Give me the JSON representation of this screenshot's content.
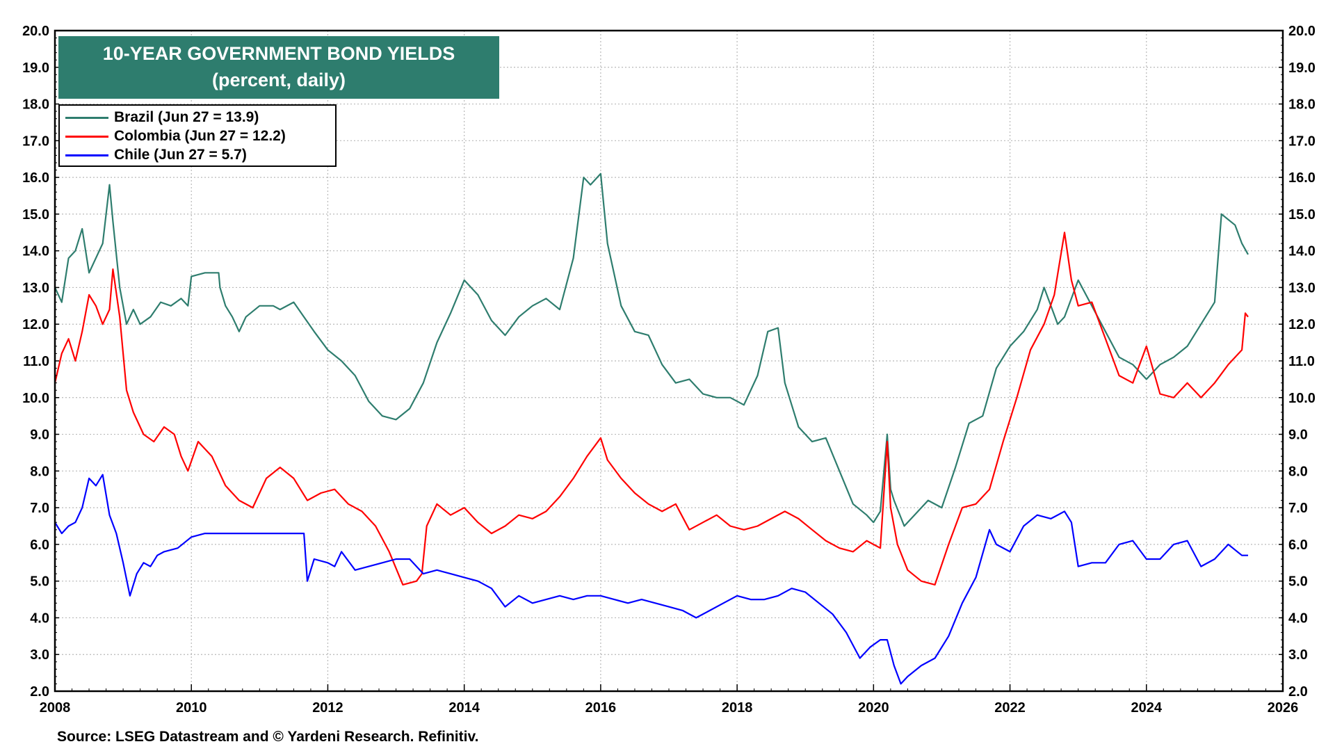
{
  "source_text": "Source: LSEG Datastream and © Yardeni Research. Refinitiv.",
  "chart_data": {
    "type": "line",
    "title": "10-YEAR GOVERNMENT BOND YIELDS",
    "subtitle": "(percent, daily)",
    "title_bg_color": "#2e7d6e",
    "xlim": [
      2008,
      2026
    ],
    "ylim": [
      2.0,
      20.0
    ],
    "x_ticks": [
      "2008",
      "2010",
      "2012",
      "2014",
      "2016",
      "2018",
      "2020",
      "2022",
      "2024",
      "2026"
    ],
    "y_ticks": [
      "2.0",
      "3.0",
      "4.0",
      "5.0",
      "6.0",
      "7.0",
      "8.0",
      "9.0",
      "10.0",
      "11.0",
      "12.0",
      "13.0",
      "14.0",
      "15.0",
      "16.0",
      "17.0",
      "18.0",
      "19.0",
      "20.0"
    ],
    "grid": true,
    "legend_position": "top-left",
    "series": [
      {
        "name": "Brazil (Jun 27 = 13.9)",
        "color": "#2e7d6e",
        "x": [
          2008.0,
          2008.1,
          2008.2,
          2008.3,
          2008.4,
          2008.5,
          2008.6,
          2008.7,
          2008.8,
          2008.85,
          2008.95,
          2009.05,
          2009.15,
          2009.25,
          2009.4,
          2009.55,
          2009.7,
          2009.85,
          2009.95,
          2010.0,
          2010.2,
          2010.4,
          2010.42,
          2010.5,
          2010.6,
          2010.7,
          2010.8,
          2011.0,
          2011.2,
          2011.3,
          2011.5,
          2011.65,
          2011.8,
          2012.0,
          2012.2,
          2012.4,
          2012.6,
          2012.8,
          2013.0,
          2013.2,
          2013.4,
          2013.6,
          2013.8,
          2014.0,
          2014.2,
          2014.4,
          2014.6,
          2014.8,
          2015.0,
          2015.2,
          2015.4,
          2015.6,
          2015.75,
          2015.85,
          2016.0,
          2016.1,
          2016.3,
          2016.5,
          2016.7,
          2016.9,
          2017.1,
          2017.3,
          2017.5,
          2017.7,
          2017.9,
          2018.1,
          2018.3,
          2018.45,
          2018.6,
          2018.7,
          2018.9,
          2019.1,
          2019.3,
          2019.5,
          2019.7,
          2019.9,
          2020.0,
          2020.1,
          2020.2,
          2020.25,
          2020.3,
          2020.45,
          2020.6,
          2020.8,
          2021.0,
          2021.2,
          2021.4,
          2021.6,
          2021.8,
          2022.0,
          2022.2,
          2022.4,
          2022.5,
          2022.7,
          2022.8,
          2023.0,
          2023.2,
          2023.4,
          2023.6,
          2023.8,
          2024.0,
          2024.2,
          2024.4,
          2024.6,
          2024.8,
          2025.0,
          2025.1,
          2025.3,
          2025.4,
          2025.49
        ],
        "y": [
          13.0,
          12.6,
          13.8,
          14.0,
          14.6,
          13.4,
          13.8,
          14.2,
          15.8,
          14.8,
          13.0,
          12.0,
          12.4,
          12.0,
          12.2,
          12.6,
          12.5,
          12.7,
          12.5,
          13.3,
          13.4,
          13.4,
          13.0,
          12.5,
          12.2,
          11.8,
          12.2,
          12.5,
          12.5,
          12.4,
          12.6,
          12.2,
          11.8,
          11.3,
          11.0,
          10.6,
          9.9,
          9.5,
          9.4,
          9.7,
          10.4,
          11.5,
          12.3,
          13.2,
          12.8,
          12.1,
          11.7,
          12.2,
          12.5,
          12.7,
          12.4,
          13.8,
          16.0,
          15.8,
          16.1,
          14.2,
          12.5,
          11.8,
          11.7,
          10.9,
          10.4,
          10.5,
          10.1,
          10.0,
          10.0,
          9.8,
          10.6,
          11.8,
          11.9,
          10.4,
          9.2,
          8.8,
          8.9,
          8.0,
          7.1,
          6.8,
          6.6,
          6.9,
          9.0,
          7.5,
          7.2,
          6.5,
          6.8,
          7.2,
          7.0,
          8.1,
          9.3,
          9.5,
          10.8,
          11.4,
          11.8,
          12.4,
          13.0,
          12.0,
          12.2,
          13.2,
          12.5,
          11.8,
          11.1,
          10.9,
          10.5,
          10.9,
          11.1,
          11.4,
          12.0,
          12.6,
          15.0,
          14.7,
          14.2,
          13.9
        ]
      },
      {
        "name": "Colombia (Jun 27 = 12.2)",
        "color": "#ff0000",
        "x": [
          2008.0,
          2008.1,
          2008.2,
          2008.3,
          2008.4,
          2008.5,
          2008.6,
          2008.7,
          2008.8,
          2008.85,
          2008.95,
          2009.05,
          2009.15,
          2009.3,
          2009.45,
          2009.6,
          2009.75,
          2009.85,
          2009.95,
          2010.1,
          2010.3,
          2010.5,
          2010.7,
          2010.9,
          2011.1,
          2011.3,
          2011.5,
          2011.7,
          2011.9,
          2012.1,
          2012.3,
          2012.5,
          2012.7,
          2012.9,
          2013.1,
          2013.3,
          2013.38,
          2013.45,
          2013.6,
          2013.8,
          2014.0,
          2014.2,
          2014.4,
          2014.6,
          2014.8,
          2015.0,
          2015.2,
          2015.4,
          2015.6,
          2015.8,
          2016.0,
          2016.1,
          2016.3,
          2016.5,
          2016.7,
          2016.9,
          2017.1,
          2017.3,
          2017.5,
          2017.7,
          2017.9,
          2018.1,
          2018.3,
          2018.5,
          2018.7,
          2018.9,
          2019.1,
          2019.3,
          2019.5,
          2019.7,
          2019.9,
          2020.1,
          2020.2,
          2020.25,
          2020.35,
          2020.5,
          2020.7,
          2020.9,
          2021.1,
          2021.3,
          2021.5,
          2021.7,
          2021.9,
          2022.1,
          2022.3,
          2022.5,
          2022.65,
          2022.8,
          2022.9,
          2023.0,
          2023.2,
          2023.4,
          2023.6,
          2023.8,
          2024.0,
          2024.2,
          2024.4,
          2024.6,
          2024.8,
          2025.0,
          2025.2,
          2025.4,
          2025.45,
          2025.49
        ],
        "y": [
          10.4,
          11.2,
          11.6,
          11.0,
          11.8,
          12.8,
          12.5,
          12.0,
          12.4,
          13.5,
          12.2,
          10.2,
          9.6,
          9.0,
          8.8,
          9.2,
          9.0,
          8.4,
          8.0,
          8.8,
          8.4,
          7.6,
          7.2,
          7.0,
          7.8,
          8.1,
          7.8,
          7.2,
          7.4,
          7.5,
          7.1,
          6.9,
          6.5,
          5.8,
          4.9,
          5.0,
          5.2,
          6.5,
          7.1,
          6.8,
          7.0,
          6.6,
          6.3,
          6.5,
          6.8,
          6.7,
          6.9,
          7.3,
          7.8,
          8.4,
          8.9,
          8.3,
          7.8,
          7.4,
          7.1,
          6.9,
          7.1,
          6.4,
          6.6,
          6.8,
          6.5,
          6.4,
          6.5,
          6.7,
          6.9,
          6.7,
          6.4,
          6.1,
          5.9,
          5.8,
          6.1,
          5.9,
          8.8,
          7.0,
          6.0,
          5.3,
          5.0,
          4.9,
          6.0,
          7.0,
          7.1,
          7.5,
          8.8,
          10.0,
          11.3,
          12.0,
          12.8,
          14.5,
          13.2,
          12.5,
          12.6,
          11.6,
          10.6,
          10.4,
          11.4,
          10.1,
          10.0,
          10.4,
          10.0,
          10.4,
          10.9,
          11.3,
          12.3,
          12.2
        ]
      },
      {
        "name": "Chile (Jun 27 = 5.7)",
        "color": "#0000ff",
        "x": [
          2008.0,
          2008.1,
          2008.2,
          2008.3,
          2008.4,
          2008.5,
          2008.6,
          2008.7,
          2008.8,
          2008.9,
          2009.0,
          2009.1,
          2009.2,
          2009.3,
          2009.4,
          2009.5,
          2009.6,
          2009.8,
          2010.0,
          2010.2,
          2010.4,
          2010.6,
          2010.8,
          2011.0,
          2011.2,
          2011.4,
          2011.55,
          2011.65,
          2011.7,
          2011.8,
          2012.0,
          2012.1,
          2012.2,
          2012.4,
          2012.6,
          2012.8,
          2013.0,
          2013.2,
          2013.4,
          2013.6,
          2013.8,
          2014.0,
          2014.2,
          2014.4,
          2014.6,
          2014.8,
          2015.0,
          2015.2,
          2015.4,
          2015.6,
          2015.8,
          2016.0,
          2016.2,
          2016.4,
          2016.6,
          2016.8,
          2017.0,
          2017.2,
          2017.4,
          2017.6,
          2017.8,
          2018.0,
          2018.2,
          2018.4,
          2018.6,
          2018.8,
          2019.0,
          2019.2,
          2019.4,
          2019.6,
          2019.8,
          2019.95,
          2020.1,
          2020.2,
          2020.3,
          2020.4,
          2020.5,
          2020.7,
          2020.9,
          2021.1,
          2021.3,
          2021.5,
          2021.7,
          2021.8,
          2022.0,
          2022.2,
          2022.4,
          2022.6,
          2022.8,
          2022.9,
          2023.0,
          2023.2,
          2023.4,
          2023.6,
          2023.8,
          2024.0,
          2024.2,
          2024.4,
          2024.6,
          2024.8,
          2025.0,
          2025.2,
          2025.4,
          2025.49
        ],
        "y": [
          6.6,
          6.3,
          6.5,
          6.6,
          7.0,
          7.8,
          7.6,
          7.9,
          6.8,
          6.3,
          5.5,
          4.6,
          5.2,
          5.5,
          5.4,
          5.7,
          5.8,
          5.9,
          6.2,
          6.3,
          6.3,
          6.3,
          6.3,
          6.3,
          6.3,
          6.3,
          6.3,
          6.3,
          5.0,
          5.6,
          5.5,
          5.4,
          5.8,
          5.3,
          5.4,
          5.5,
          5.6,
          5.6,
          5.2,
          5.3,
          5.2,
          5.1,
          5.0,
          4.8,
          4.3,
          4.6,
          4.4,
          4.5,
          4.6,
          4.5,
          4.6,
          4.6,
          4.5,
          4.4,
          4.5,
          4.4,
          4.3,
          4.2,
          4.0,
          4.2,
          4.4,
          4.6,
          4.5,
          4.5,
          4.6,
          4.8,
          4.7,
          4.4,
          4.1,
          3.6,
          2.9,
          3.2,
          3.4,
          3.4,
          2.7,
          2.2,
          2.4,
          2.7,
          2.9,
          3.5,
          4.4,
          5.1,
          6.4,
          6.0,
          5.8,
          6.5,
          6.8,
          6.7,
          6.9,
          6.6,
          5.4,
          5.5,
          5.5,
          6.0,
          6.1,
          5.6,
          5.6,
          6.0,
          6.1,
          5.4,
          5.6,
          6.0,
          5.7,
          5.7
        ]
      }
    ]
  }
}
